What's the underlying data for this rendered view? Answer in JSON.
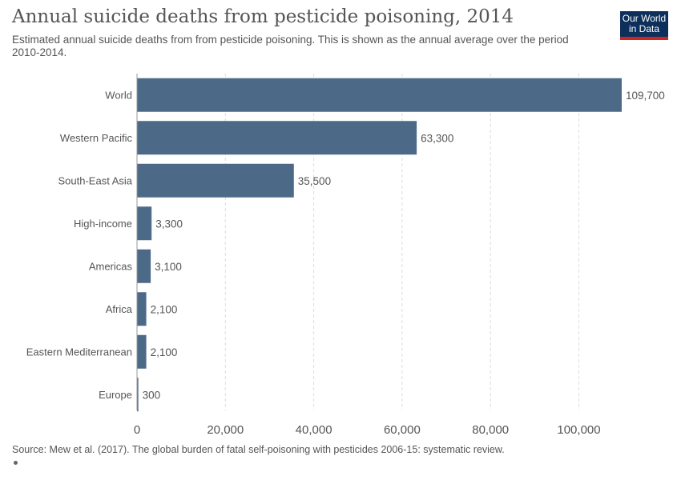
{
  "header": {
    "title": "Annual suicide deaths from pesticide poisoning, 2014",
    "subtitle": "Estimated annual suicide deaths from from pesticide poisoning. This is shown as the annual average over the period 2010-2014.",
    "logo_line1": "Our World",
    "logo_line2": "in Data"
  },
  "footer": {
    "source": "Source: Mew et al. (2017). The global burden of fatal self-poisoning with pesticides 2006-15: systematic review."
  },
  "colors": {
    "bar": "#4c6a88",
    "grid": "#dddddd",
    "text": "#555555"
  },
  "chart_data": {
    "type": "bar",
    "orientation": "horizontal",
    "title": "Annual suicide deaths from pesticide poisoning, 2014",
    "categories": [
      "World",
      "Western Pacific",
      "South-East Asia",
      "High-income",
      "Americas",
      "Africa",
      "Eastern Mediterranean",
      "Europe"
    ],
    "values": [
      109700,
      63300,
      35500,
      3300,
      3100,
      2100,
      2100,
      300
    ],
    "value_labels": [
      "109,700",
      "63,300",
      "35,500",
      "3,300",
      "3,100",
      "2,100",
      "2,100",
      "300"
    ],
    "xticks": [
      0,
      20000,
      40000,
      60000,
      80000,
      100000
    ],
    "xtick_labels": [
      "0",
      "20,000",
      "40,000",
      "60,000",
      "80,000",
      "100,000"
    ],
    "xlim": [
      0,
      109700
    ],
    "grid": "vertical dashed"
  }
}
